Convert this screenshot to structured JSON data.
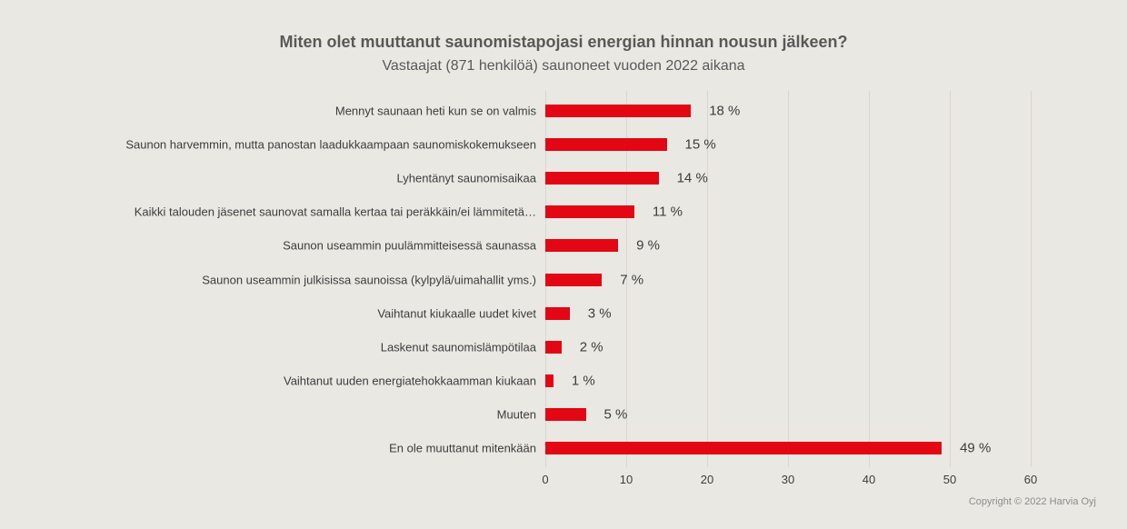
{
  "header": {
    "title": "Miten olet muuttanut saunomistapojasi energian hinnan nousun jälkeen?",
    "subtitle": "Vastaajat (871 henkilöä) saunoneet vuoden 2022 aikana"
  },
  "chart_data": {
    "type": "bar",
    "orientation": "horizontal",
    "title": "Miten olet muuttanut saunomistapojasi energian hinnan nousun jälkeen?",
    "subtitle": "Vastaajat (871 henkilöä) saunoneet vuoden 2022 aikana",
    "categories": [
      "Mennyt saunaan heti kun se on valmis",
      "Saunon harvemmin, mutta panostan laadukkaampaan saunomiskokemukseen",
      "Lyhentänyt saunomisaikaa",
      "Kaikki talouden jäsenet saunovat samalla kertaa tai peräkkäin/ei lämmitetä…",
      "Saunon useammin puulämmitteisessä saunassa",
      "Saunon useammin julkisissa saunoissa (kylpylä/uimahallit yms.)",
      "Vaihtanut kiukaalle uudet kivet",
      "Laskenut saunomislämpötilaa",
      "Vaihtanut uuden energiatehokkaamman kiukaan",
      "Muuten",
      "En ole muuttanut mitenkään"
    ],
    "values": [
      18,
      15,
      14,
      11,
      9,
      7,
      3,
      2,
      1,
      5,
      49
    ],
    "value_labels": [
      "18 %",
      "15 %",
      "14 %",
      "11 %",
      "9 %",
      "7 %",
      "3 %",
      "2 %",
      "1 %",
      "5 %",
      "49 %"
    ],
    "x_ticks": [
      "0",
      "10",
      "20",
      "30",
      "40",
      "50",
      "60"
    ],
    "xlim": [
      0,
      60
    ],
    "grid": true,
    "legend": false,
    "bar_color": "#e30613",
    "grid_color": "#d9d6d0",
    "background_color": "#eae8e3",
    "text_color": "#3d3d3d",
    "title_color": "#595959"
  },
  "footer": {
    "copyright": "Copyright © 2022 Harvia Oyj"
  }
}
